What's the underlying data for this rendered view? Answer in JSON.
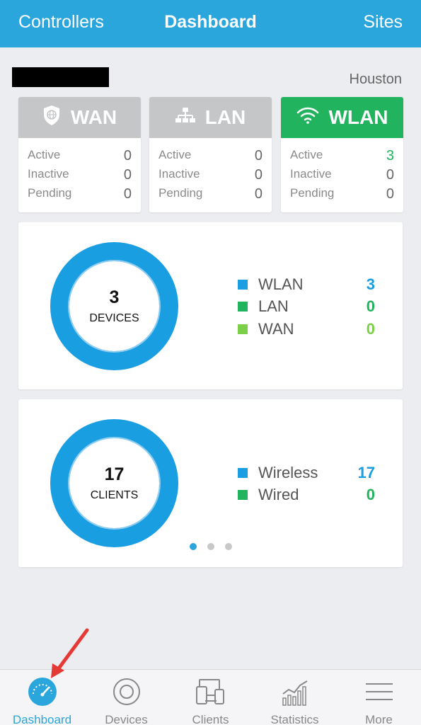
{
  "header": {
    "left": "Controllers",
    "title": "Dashboard",
    "right": "Sites"
  },
  "site_name": "Houston",
  "cards": [
    {
      "title": "WAN",
      "icon": "shield-globe-icon",
      "active": false,
      "rows": [
        {
          "label": "Active",
          "value": "0"
        },
        {
          "label": "Inactive",
          "value": "0"
        },
        {
          "label": "Pending",
          "value": "0"
        }
      ]
    },
    {
      "title": "LAN",
      "icon": "network-tree-icon",
      "active": false,
      "rows": [
        {
          "label": "Active",
          "value": "0"
        },
        {
          "label": "Inactive",
          "value": "0"
        },
        {
          "label": "Pending",
          "value": "0"
        }
      ]
    },
    {
      "title": "WLAN",
      "icon": "wifi-icon",
      "active": true,
      "rows": [
        {
          "label": "Active",
          "value": "3"
        },
        {
          "label": "Inactive",
          "value": "0"
        },
        {
          "label": "Pending",
          "value": "0"
        }
      ]
    }
  ],
  "devices": {
    "count": "3",
    "label": "DEVICES",
    "legend": [
      {
        "name": "WLAN",
        "value": "3",
        "color": "#1a9ee2"
      },
      {
        "name": "LAN",
        "value": "0",
        "color": "#22b35e"
      },
      {
        "name": "WAN",
        "value": "0",
        "color": "#7ccf48"
      }
    ]
  },
  "clients": {
    "count": "17",
    "label": "CLIENTS",
    "legend": [
      {
        "name": "Wireless",
        "value": "17",
        "color": "#1a9ee2"
      },
      {
        "name": "Wired",
        "value": "0",
        "color": "#22b35e"
      }
    ]
  },
  "pager": {
    "pages": 3,
    "current": 0
  },
  "tabs": [
    {
      "label": "Dashboard",
      "icon": "speedometer-icon",
      "active": true
    },
    {
      "label": "Devices",
      "icon": "device-circle-icon",
      "active": false
    },
    {
      "label": "Clients",
      "icon": "devices-icon",
      "active": false
    },
    {
      "label": "Statistics",
      "icon": "bar-chart-icon",
      "active": false
    },
    {
      "label": "More",
      "icon": "menu-icon",
      "active": false
    }
  ],
  "colors": {
    "accent": "#2aa6dd",
    "green": "#22b35e",
    "donut": "#1a9ee2",
    "donut_inner": "#8fcdf0"
  }
}
